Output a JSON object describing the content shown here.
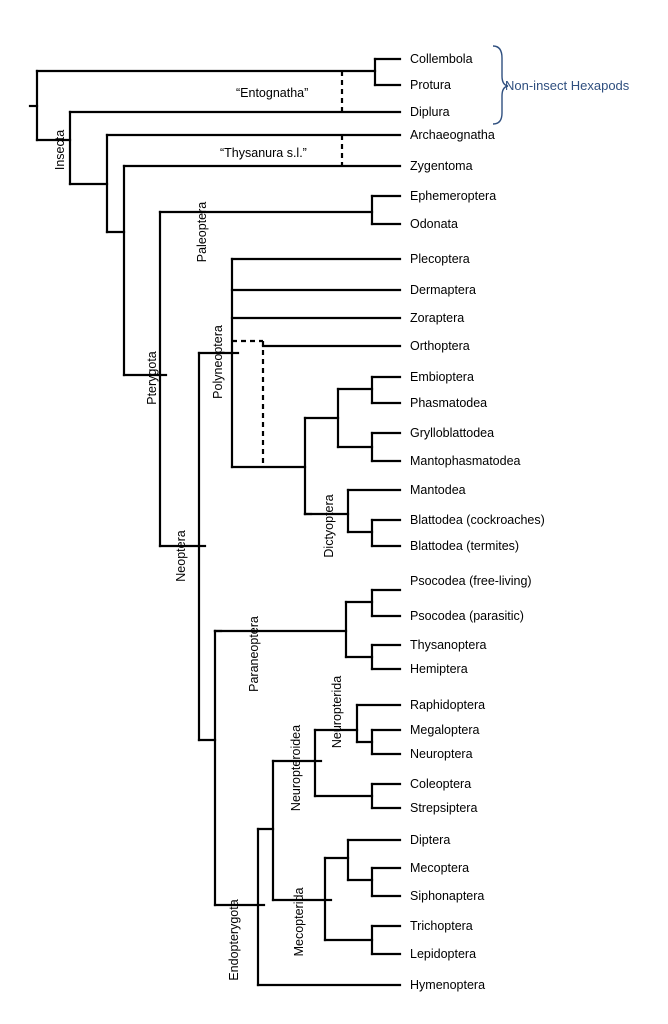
{
  "colors": {
    "line": "#000000",
    "hexapod_label": "#2f4f7f"
  },
  "taxa": [
    "Collembola",
    "Protura",
    "Diplura",
    "Archaeognatha",
    "Zygentoma",
    "Ephemeroptera",
    "Odonata",
    "Plecoptera",
    "Dermaptera",
    "Zoraptera",
    "Orthoptera",
    "Embioptera",
    "Phasmatodea",
    "Grylloblattodea",
    "Mantophasmatodea",
    "Mantodea",
    "Blattodea (cockroaches)",
    "Blattodea (termites)",
    "Psocodea (free-living)",
    "Psocodea (parasitic)",
    "Thysanoptera",
    "Hemiptera",
    "Raphidoptera",
    "Megaloptera",
    "Neuroptera",
    "Coleoptera",
    "Strepsiptera",
    "Diptera",
    "Mecoptera",
    "Siphonaptera",
    "Trichoptera",
    "Lepidoptera",
    "Hymenoptera"
  ],
  "clades": {
    "insecta": "Insecta",
    "pterygota": "Pterygota",
    "paleoptera": "Paleoptera",
    "neoptera": "Neoptera",
    "polyneoptera": "Polyneoptera",
    "dictyoptera": "Dictyoptera",
    "paraneoptera": "Paraneoptera",
    "endopterygota": "Endopterygota",
    "neuropteroidea": "Neuropteroidea",
    "neuropterida": "Neuropterida",
    "mecopterida": "Mecopterida"
  },
  "notes": {
    "entognatha": "“Entognatha”",
    "thysanura": "“Thysanura s.l.”",
    "non_insect": "Non-insect Hexapods"
  }
}
